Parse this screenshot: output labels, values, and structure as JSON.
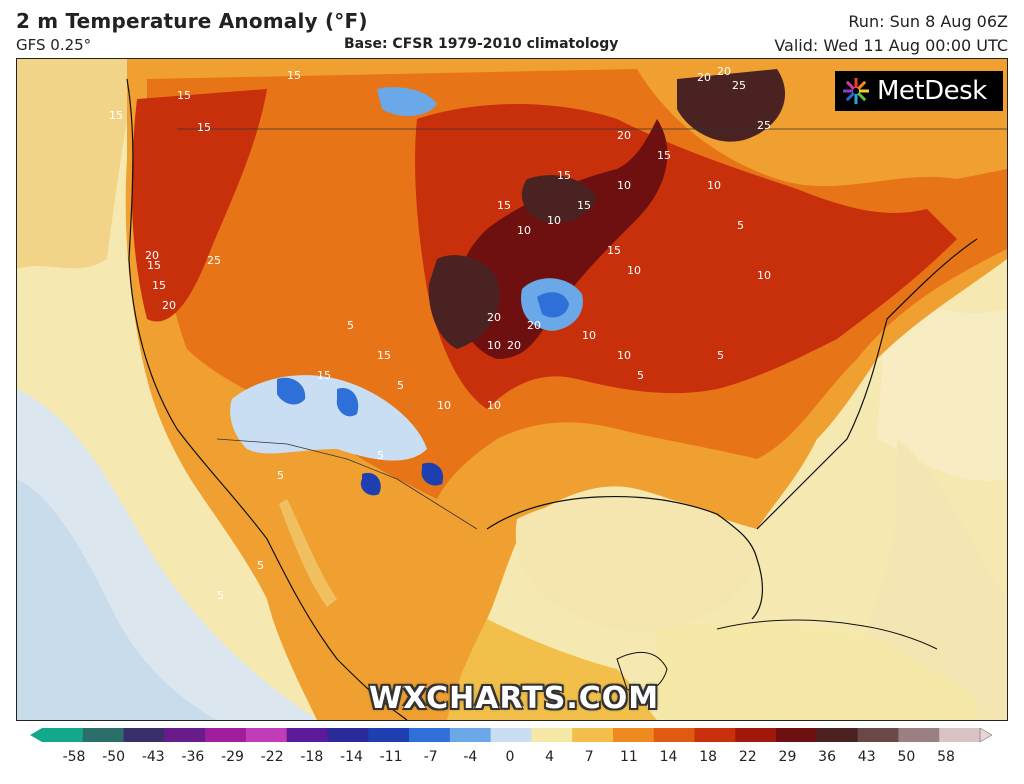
{
  "header": {
    "title": "2 m Temperature Anomaly (°F)",
    "model": "GFS 0.25°",
    "base": "Base: CFSR 1979-2010 climatology",
    "run": "Run: Sun 8 Aug 06Z",
    "valid": "Valid: Wed 11 Aug 00:00 UTC"
  },
  "logo": {
    "text": "MetDesk"
  },
  "watermark": "WXCHARTS.COM",
  "contour_labels": [
    "15",
    "15",
    "15",
    "15",
    "20",
    "25",
    "20",
    "25",
    "20",
    "15",
    "15",
    "15",
    "20",
    "20",
    "25",
    "15",
    "15",
    "10",
    "15",
    "10",
    "15",
    "10",
    "20",
    "20",
    "20",
    "10",
    "10",
    "5",
    "10",
    "10",
    "10",
    "5",
    "10",
    "5",
    "15",
    "15",
    "5",
    "10",
    "10",
    "5",
    "5",
    "5",
    "5",
    "5"
  ],
  "colorbar": {
    "ticks": [
      "-58",
      "-50",
      "-43",
      "-36",
      "-29",
      "-22",
      "-18",
      "-14",
      "-11",
      "-7",
      "-4",
      "0",
      "4",
      "7",
      "11",
      "14",
      "18",
      "22",
      "29",
      "36",
      "43",
      "50",
      "58"
    ],
    "colors": [
      "#13a88a",
      "#2a6f6a",
      "#3a2f6a",
      "#6a1b8a",
      "#a01e9e",
      "#c03cb8",
      "#5a1a9a",
      "#2a2a9a",
      "#1e3fb0",
      "#2f70d8",
      "#6aa8e8",
      "#c9def3",
      "#f6e9a8",
      "#f2c04a",
      "#ee8a20",
      "#e05a12",
      "#c8300c",
      "#a0180a",
      "#6e1010",
      "#4a2020",
      "#6a4848",
      "#9a8080",
      "#d8c4c4"
    ]
  }
}
